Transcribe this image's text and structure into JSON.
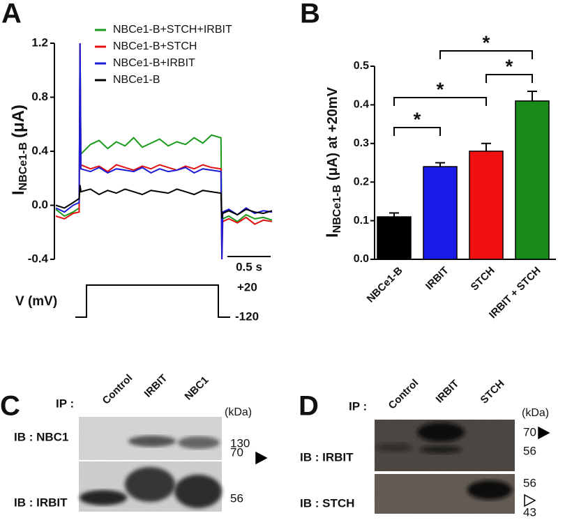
{
  "chart_data": [
    {
      "type": "line",
      "panel_label": "A",
      "y_label": {
        "main": "I",
        "sub": "NBCe1-B",
        "unit": "(μA)"
      },
      "x": [
        0,
        0.1,
        0.2,
        0.27,
        0.28,
        0.29,
        0.4,
        0.5,
        0.6,
        0.7,
        0.8,
        0.9,
        1.0,
        1.1,
        1.2,
        1.3,
        1.4,
        1.5,
        1.6,
        1.7,
        1.8,
        1.91,
        1.92,
        1.93,
        2.0,
        2.1,
        2.2,
        2.3,
        2.4,
        2.5
      ],
      "xlim": [
        0,
        2.5
      ],
      "ylim": [
        -0.4,
        1.2
      ],
      "yticks": [
        -0.4,
        {
          "value": 0,
          "label": "0.0"
        },
        0.4,
        0.8,
        1.2
      ],
      "series": [
        {
          "name": "NBCe1-B+STCH+IRBIT",
          "color": "#1a9a1a",
          "values": [
            -0.03,
            -0.08,
            -0.05,
            -0.02,
            1.2,
            0.38,
            0.45,
            0.48,
            0.42,
            0.47,
            0.44,
            0.5,
            0.43,
            0.46,
            0.49,
            0.44,
            0.47,
            0.45,
            0.5,
            0.46,
            0.52,
            0.5,
            -0.3,
            -0.1,
            -0.08,
            -0.12,
            -0.07,
            -0.1,
            -0.09,
            -0.11
          ]
        },
        {
          "name": "NBCe1-B+STCH",
          "color": "#e01010",
          "values": [
            -0.08,
            -0.1,
            -0.06,
            -0.05,
            1.2,
            0.3,
            0.27,
            0.29,
            0.25,
            0.3,
            0.28,
            0.26,
            0.29,
            0.27,
            0.3,
            0.28,
            0.26,
            0.29,
            0.27,
            0.3,
            0.28,
            0.27,
            -0.4,
            -0.12,
            -0.1,
            -0.13,
            -0.09,
            -0.14,
            -0.11,
            -0.12
          ]
        },
        {
          "name": "NBCe1-B+IRBIT",
          "color": "#1a1ad8",
          "values": [
            -0.02,
            -0.05,
            0.0,
            0.02,
            1.2,
            0.27,
            0.25,
            0.28,
            0.24,
            0.27,
            0.26,
            0.25,
            0.28,
            0.24,
            0.27,
            0.25,
            0.26,
            0.28,
            0.24,
            0.27,
            0.26,
            0.25,
            -0.4,
            -0.05,
            -0.03,
            -0.07,
            -0.02,
            -0.06,
            -0.04,
            -0.05
          ]
        },
        {
          "name": "NBCe1-B",
          "color": "#000000",
          "values": [
            0.0,
            -0.02,
            0.02,
            0.05,
            0.15,
            0.1,
            0.12,
            0.08,
            0.11,
            0.09,
            0.12,
            0.1,
            0.08,
            0.11,
            0.1,
            0.09,
            0.12,
            0.1,
            0.08,
            0.11,
            0.1,
            0.09,
            -0.1,
            -0.06,
            -0.04,
            -0.07,
            -0.03,
            -0.05,
            -0.06,
            -0.04
          ]
        }
      ],
      "scale_bar": {
        "value": 0.5,
        "label": "0.5 s"
      },
      "protocol": {
        "label": "V (mV)",
        "levels": [
          {
            "value": 20,
            "label": "+20"
          },
          {
            "value": -120,
            "label": "-120"
          }
        ]
      }
    },
    {
      "type": "bar",
      "panel_label": "B",
      "y_label": {
        "main": "I",
        "sub": "NBCe1-B",
        "unit": "(μA) at +20mV"
      },
      "categories": [
        "NBCe1-B",
        "IRBIT",
        "STCH",
        "IRBIT + STCH"
      ],
      "values": [
        0.11,
        0.24,
        0.28,
        0.41
      ],
      "errors": [
        0.01,
        0.01,
        0.02,
        0.025
      ],
      "colors": [
        "#000000",
        "#1a1ae8",
        "#f01010",
        "#1a8a1a"
      ],
      "ylim": [
        0,
        0.5
      ],
      "yticks": [
        {
          "value": 0,
          "label": "0.0"
        },
        0.1,
        0.2,
        0.3,
        0.4,
        0.5
      ],
      "annotations": [
        "*",
        "*",
        "*",
        "*"
      ]
    }
  ],
  "blots": [
    {
      "panel_label": "C",
      "ip_label": "IP :",
      "lanes": [
        "Control",
        "IRBIT",
        "NBC1"
      ],
      "unit": "(kDa)",
      "rows": [
        {
          "label": "IB : NBC1",
          "markers": [
            130
          ]
        },
        {
          "label": "IB : IRBIT",
          "markers": [
            70,
            56
          ]
        }
      ]
    },
    {
      "panel_label": "D",
      "ip_label": "IP :",
      "lanes": [
        "Control",
        "IRBIT",
        "STCH"
      ],
      "unit": "(kDa)",
      "rows": [
        {
          "label": "IB : IRBIT",
          "markers": [
            70,
            56
          ]
        },
        {
          "label": "IB : STCH",
          "markers": [
            56,
            43
          ]
        }
      ]
    }
  ]
}
